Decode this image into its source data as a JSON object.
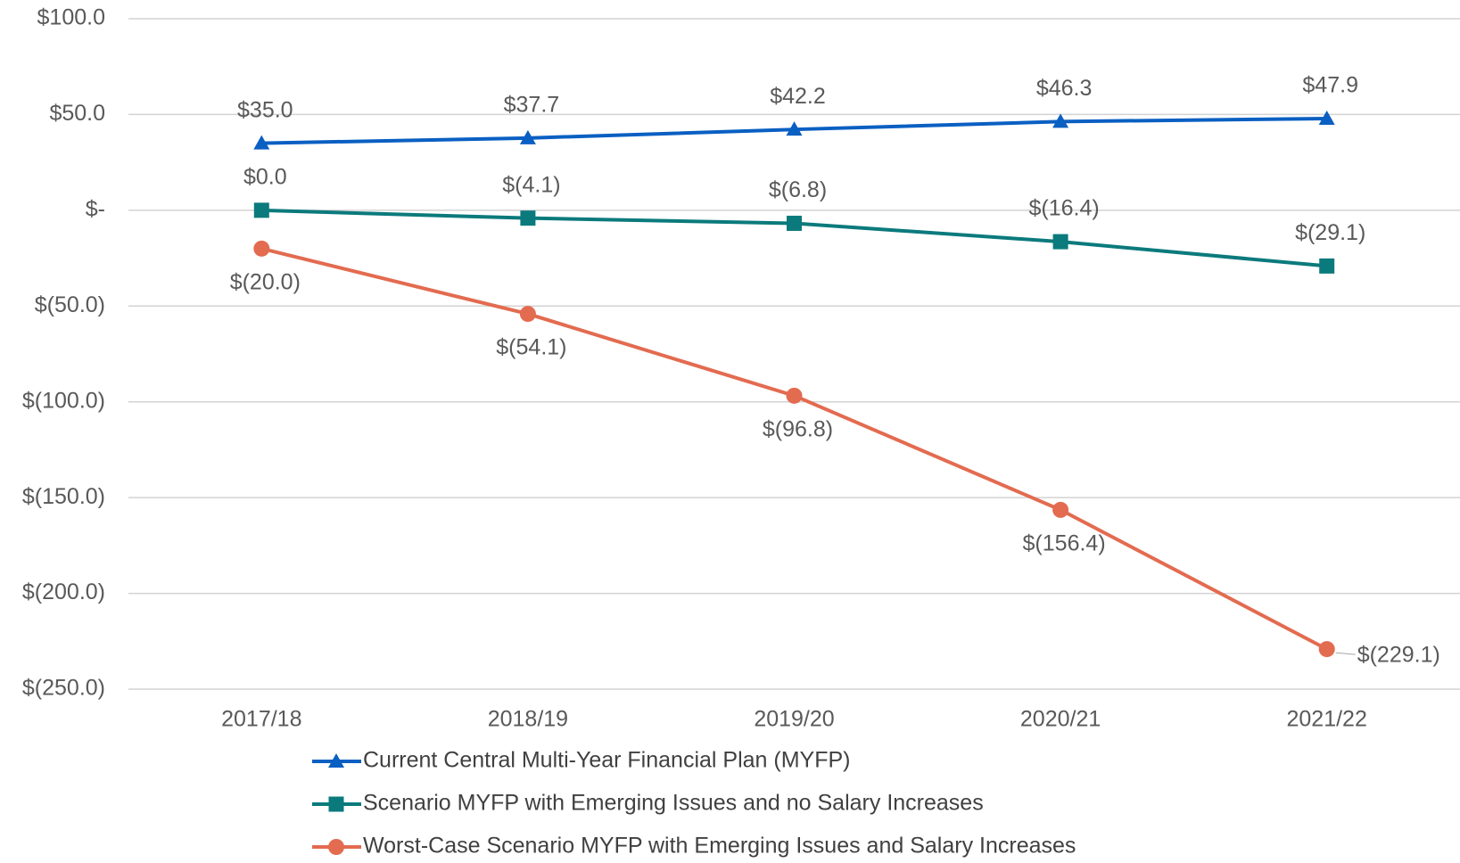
{
  "chart_data": {
    "type": "line",
    "categories": [
      "2017/18",
      "2018/19",
      "2019/20",
      "2020/21",
      "2021/22"
    ],
    "series": [
      {
        "name": "Current Central Multi-Year Financial Plan (MYFP)",
        "color": "#0a5fc2",
        "marker": "triangle",
        "values": [
          35.0,
          37.7,
          42.2,
          46.3,
          47.9
        ],
        "value_labels": [
          "$35.0",
          "$37.7",
          "$42.2",
          "$46.3",
          "$47.9"
        ]
      },
      {
        "name": "Scenario MYFP with Emerging Issues and no Salary Increases",
        "color": "#0b7a7c",
        "marker": "square",
        "values": [
          0.0,
          -4.1,
          -6.8,
          -16.4,
          -29.1
        ],
        "value_labels": [
          "$0.0",
          "$(4.1)",
          "$(6.8)",
          "$(16.4)",
          "$(29.1)"
        ]
      },
      {
        "name": "Worst-Case Scenario MYFP with Emerging Issues and Salary Increases",
        "color": "#e36b50",
        "marker": "circle",
        "values": [
          -20.0,
          -54.1,
          -96.8,
          -156.4,
          -229.1
        ],
        "value_labels": [
          "$(20.0)",
          "$(54.1)",
          "$(96.8)",
          "$(156.4)",
          "$(229.1)"
        ]
      }
    ],
    "ylim": [
      -250,
      100
    ],
    "yticks": [
      {
        "value": -250,
        "label": "$(250.0)"
      },
      {
        "value": -200,
        "label": "$(200.0)"
      },
      {
        "value": -150,
        "label": "$(150.0)"
      },
      {
        "value": -100,
        "label": "$(100.0)"
      },
      {
        "value": -50,
        "label": "$(50.0)"
      },
      {
        "value": 0,
        "label": "$-"
      },
      {
        "value": 50,
        "label": "$50.0"
      },
      {
        "value": 100,
        "label": "$100.0"
      }
    ],
    "grid": true
  }
}
